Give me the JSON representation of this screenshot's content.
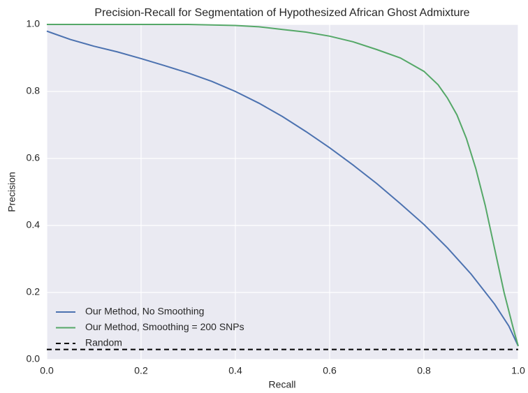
{
  "chart_data": {
    "type": "line",
    "title": "Precision-Recall for Segmentation of Hypothesized African Ghost Admixture",
    "xlabel": "Recall",
    "ylabel": "Precision",
    "series": [
      {
        "name": "Our Method, No Smoothing",
        "color": "#4c72b0",
        "style": "solid",
        "x": [
          0,
          0.01,
          0.05,
          0.1,
          0.15,
          0.2,
          0.25,
          0.3,
          0.35,
          0.4,
          0.45,
          0.5,
          0.55,
          0.6,
          0.65,
          0.7,
          0.75,
          0.8,
          0.85,
          0.9,
          0.95,
          0.98,
          1.0
        ],
        "values": [
          0.98,
          0.975,
          0.955,
          0.935,
          0.918,
          0.898,
          0.877,
          0.855,
          0.83,
          0.8,
          0.765,
          0.725,
          0.68,
          0.632,
          0.58,
          0.525,
          0.465,
          0.403,
          0.333,
          0.255,
          0.165,
          0.1,
          0.04
        ]
      },
      {
        "name": "Our Method, Smoothing = 200 SNPs",
        "color": "#55a868",
        "style": "solid",
        "x": [
          0,
          0.3,
          0.4,
          0.45,
          0.5,
          0.55,
          0.6,
          0.65,
          0.7,
          0.75,
          0.8,
          0.83,
          0.85,
          0.87,
          0.89,
          0.91,
          0.93,
          0.95,
          0.97,
          0.99,
          1.0
        ],
        "values": [
          1.0,
          1.0,
          0.997,
          0.993,
          0.985,
          0.977,
          0.965,
          0.948,
          0.925,
          0.9,
          0.86,
          0.82,
          0.78,
          0.73,
          0.66,
          0.57,
          0.46,
          0.33,
          0.2,
          0.09,
          0.04
        ]
      },
      {
        "name": "Random",
        "color": "#000000",
        "style": "dashed",
        "x": [
          0,
          1.0
        ],
        "values": [
          0.03,
          0.03
        ]
      }
    ],
    "xlim": [
      0,
      1.0
    ],
    "ylim": [
      0,
      1.0
    ],
    "xticks": [
      {
        "value": 0,
        "label": "0.0"
      },
      0.2,
      0.4,
      0.6,
      0.8,
      {
        "value": 1.0,
        "label": "1.0"
      }
    ],
    "yticks": [
      {
        "value": 0,
        "label": "0.0"
      },
      0.2,
      0.4,
      0.6,
      0.8,
      {
        "value": 1.0,
        "label": "1.0"
      }
    ],
    "grid": true,
    "legend": "lower left"
  }
}
